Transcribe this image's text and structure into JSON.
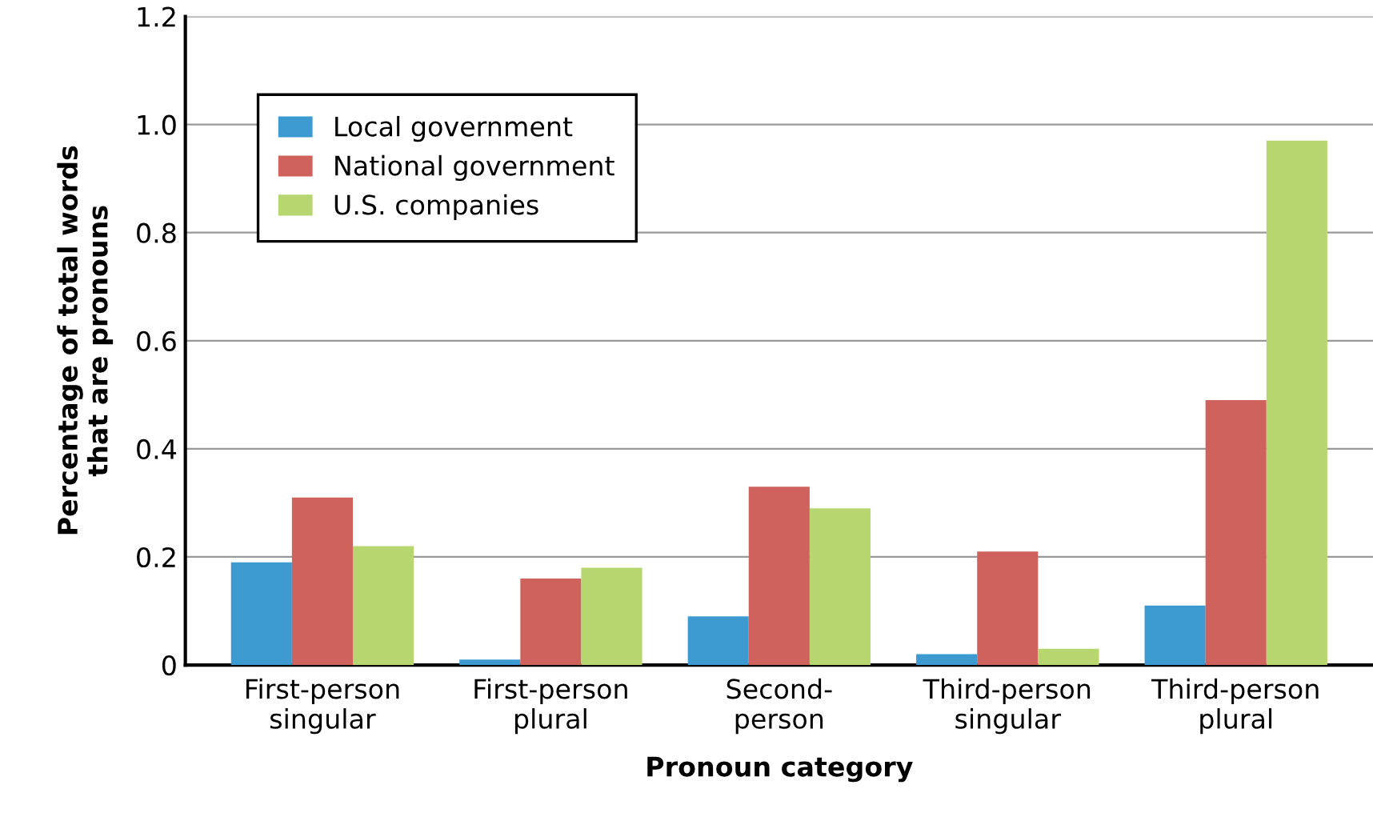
{
  "chart_data": {
    "type": "bar",
    "xlabel": "Pronoun category",
    "ylabel": "Percentage of total words\nthat are pronouns",
    "categories": [
      "First-person\nsingular",
      "First-person\nplural",
      "Second-\nperson",
      "Third-person\nsingular",
      "Third-person\nplural"
    ],
    "series": [
      {
        "name": "Local government",
        "color": "#3d9ad1",
        "values": [
          0.19,
          0.01,
          0.09,
          0.02,
          0.11
        ]
      },
      {
        "name": "National government",
        "color": "#d0625d",
        "values": [
          0.31,
          0.16,
          0.33,
          0.21,
          0.49
        ]
      },
      {
        "name": "U.S. companies",
        "color": "#b7d66f",
        "values": [
          0.22,
          0.18,
          0.29,
          0.03,
          0.97
        ]
      }
    ],
    "ylim": [
      0,
      1.2
    ],
    "yticks": [
      0,
      {
        "value": 0.2,
        "label": "0.2"
      },
      {
        "value": 0.4,
        "label": "0.4"
      },
      {
        "value": 0.6,
        "label": "0.6"
      },
      {
        "value": 0.8,
        "label": "0.8"
      },
      {
        "value": 1.0,
        "label": "1.0"
      },
      {
        "value": 1.2,
        "label": "1.2"
      }
    ],
    "grid": "y",
    "legend": "top left"
  }
}
